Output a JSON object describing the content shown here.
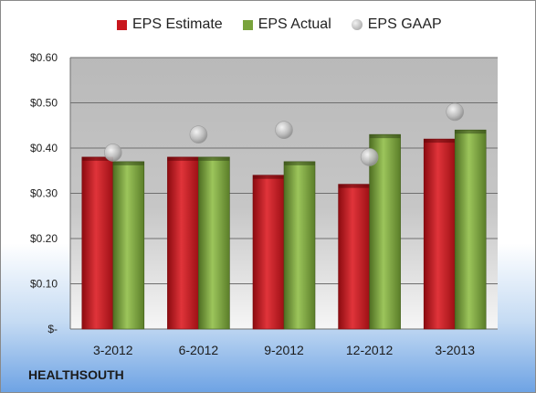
{
  "company": "HEALTHSOUTH",
  "colors": {
    "estimate": "#c8161d",
    "actual": "#79a33c",
    "gaap": "#b3b3b3"
  },
  "chart_data": {
    "type": "bar",
    "categories": [
      "3-2012",
      "6-2012",
      "9-2012",
      "12-2012",
      "3-2013"
    ],
    "series": [
      {
        "name": "EPS Estimate",
        "type": "bar",
        "values": [
          0.38,
          0.38,
          0.34,
          0.32,
          0.42
        ]
      },
      {
        "name": "EPS Actual",
        "type": "bar",
        "values": [
          0.37,
          0.38,
          0.37,
          0.43,
          0.44
        ]
      },
      {
        "name": "EPS GAAP",
        "type": "scatter",
        "values": [
          0.39,
          0.43,
          0.44,
          0.38,
          0.48
        ]
      }
    ],
    "yticks": [
      "$-",
      "$0.10",
      "$0.20",
      "$0.30",
      "$0.40",
      "$0.50",
      "$0.60"
    ],
    "ylim": [
      0,
      0.6
    ],
    "grid": true,
    "legend_position": "top"
  }
}
